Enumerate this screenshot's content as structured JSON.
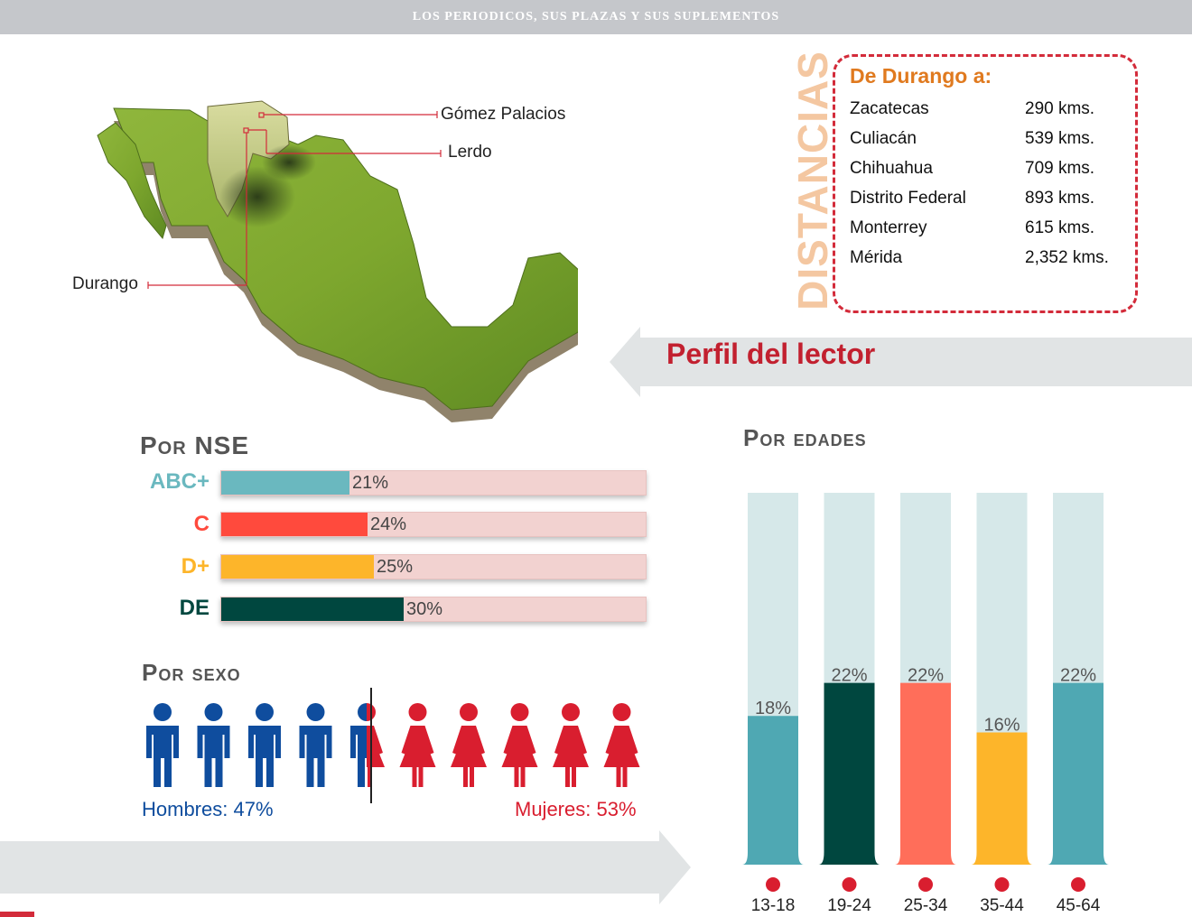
{
  "header": {
    "title": "LOS PERIODICOS, SUS PLAZAS Y SUS SUPLEMENTOS"
  },
  "map": {
    "labels": {
      "gomez": "Gómez Palacios",
      "lerdo": "Lerdo",
      "durango": "Durango"
    }
  },
  "distancias": {
    "vertical_title": "DISTANCIAS",
    "heading": "De Durango a:",
    "rows": [
      {
        "city": "Zacatecas",
        "km": "290 kms."
      },
      {
        "city": "Culiacán",
        "km": "539 kms."
      },
      {
        "city": "Chihuahua",
        "km": "709 kms."
      },
      {
        "city": "Distrito Federal",
        "km": "893 kms."
      },
      {
        "city": "Monterrey",
        "km": "615 kms."
      },
      {
        "city": "Mérida",
        "km": "2,352 kms."
      }
    ]
  },
  "perfil": {
    "title": "Perfil del lector"
  },
  "nse": {
    "title": "Por NSE",
    "rows": [
      {
        "label": "ABC+",
        "value": 21,
        "value_label": "21%",
        "color": "#6ab8bf"
      },
      {
        "label": "C",
        "value": 24,
        "value_label": "24%",
        "color": "#ff4a3d"
      },
      {
        "label": "D+",
        "value": 25,
        "value_label": "25%",
        "color": "#fdb52a"
      },
      {
        "label": "DE",
        "value": 30,
        "value_label": "30%",
        "color": "#00473f"
      }
    ]
  },
  "sexo": {
    "title": "Por sexo",
    "hombres_label": "Hombres: 47%",
    "mujeres_label": "Mujeres: 53%",
    "hombres_share": 47,
    "mujeres_share": 53,
    "male_color": "#0f4d9e",
    "female_color": "#d91e2f"
  },
  "edades": {
    "title": "Por edades"
  },
  "chart_data": {
    "type": "bar",
    "title": "Por edades",
    "categories": [
      "13-18",
      "19-24",
      "25-34",
      "35-44",
      "45-64"
    ],
    "values": [
      18,
      22,
      22,
      16,
      22
    ],
    "value_labels": [
      "18%",
      "22%",
      "22%",
      "16%",
      "22%"
    ],
    "colors": [
      "#4fa8b3",
      "#00473f",
      "#ff6e5a",
      "#fdb52a",
      "#4fa8b3"
    ],
    "track_color": "#d6e8e9",
    "marker_color": "#d91e2f",
    "ylim": [
      0,
      45
    ],
    "grid": false
  },
  "colors": {
    "accent_red": "#c2202f",
    "band_gray": "#e1e4e5",
    "header_gray": "#c5c7cb"
  }
}
